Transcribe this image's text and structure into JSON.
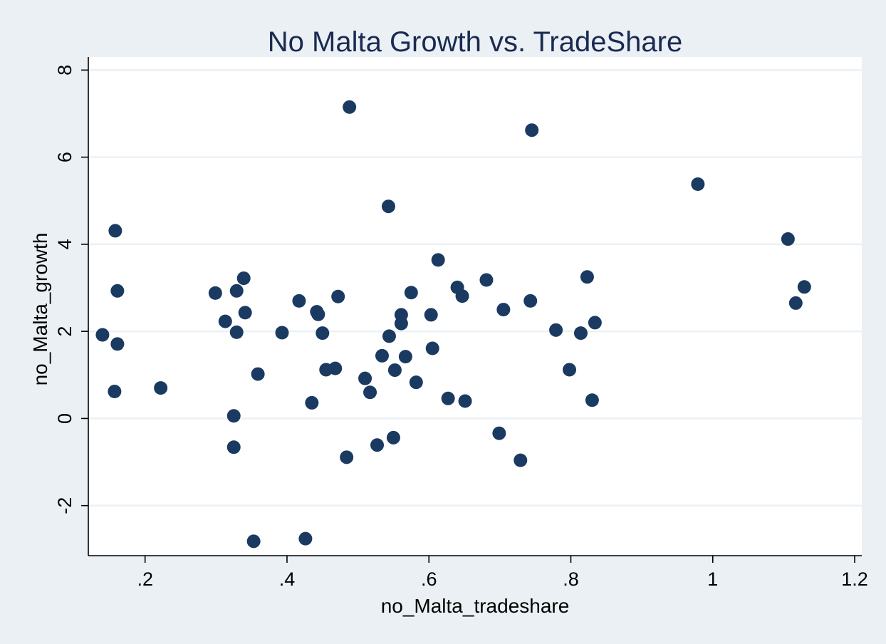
{
  "chart_data": {
    "type": "scatter",
    "title": "No Malta Growth vs. TradeShare",
    "xlabel": "no_Malta_tradeshare",
    "ylabel": "no_Malta_growth",
    "xlim": [
      0.12,
      1.21
    ],
    "ylim": [
      -3.15,
      8.3
    ],
    "x_ticks": [
      0.2,
      0.4,
      0.6,
      0.8,
      1,
      1.2
    ],
    "x_tick_labels": [
      ".2",
      ".4",
      ".6",
      ".8",
      "1",
      "1.2"
    ],
    "y_ticks": [
      -2,
      0,
      2,
      4,
      6,
      8
    ],
    "y_tick_labels": [
      "-2",
      "0",
      "2",
      "4",
      "6",
      "8"
    ],
    "grid": "horizontal",
    "legend": "none",
    "colors": {
      "background": "#eaf0f3",
      "plot_area": "#ffffff",
      "points": "#1a3a62",
      "title": "#1a2a52",
      "grid": "#eaf0f3"
    },
    "points": [
      {
        "x": 0.14,
        "y": 1.92
      },
      {
        "x": 0.158,
        "y": 4.31
      },
      {
        "x": 0.161,
        "y": 2.93
      },
      {
        "x": 0.161,
        "y": 1.71
      },
      {
        "x": 0.157,
        "y": 0.62
      },
      {
        "x": 0.222,
        "y": 0.7
      },
      {
        "x": 0.299,
        "y": 2.88
      },
      {
        "x": 0.313,
        "y": 2.23
      },
      {
        "x": 0.329,
        "y": 2.93
      },
      {
        "x": 0.329,
        "y": 1.98
      },
      {
        "x": 0.339,
        "y": 3.22
      },
      {
        "x": 0.341,
        "y": 2.43
      },
      {
        "x": 0.325,
        "y": 0.06
      },
      {
        "x": 0.325,
        "y": -0.66
      },
      {
        "x": 0.359,
        "y": 1.02
      },
      {
        "x": 0.353,
        "y": -2.82
      },
      {
        "x": 0.393,
        "y": 1.97
      },
      {
        "x": 0.417,
        "y": 2.7
      },
      {
        "x": 0.426,
        "y": -2.76
      },
      {
        "x": 0.435,
        "y": 0.36
      },
      {
        "x": 0.442,
        "y": 2.45
      },
      {
        "x": 0.444,
        "y": 2.39
      },
      {
        "x": 0.45,
        "y": 1.96
      },
      {
        "x": 0.455,
        "y": 1.12
      },
      {
        "x": 0.468,
        "y": 1.15
      },
      {
        "x": 0.472,
        "y": 2.8
      },
      {
        "x": 0.484,
        "y": -0.89
      },
      {
        "x": 0.488,
        "y": 7.15
      },
      {
        "x": 0.51,
        "y": 0.92
      },
      {
        "x": 0.517,
        "y": 0.6
      },
      {
        "x": 0.527,
        "y": -0.61
      },
      {
        "x": 0.534,
        "y": 1.44
      },
      {
        "x": 0.543,
        "y": 4.87
      },
      {
        "x": 0.544,
        "y": 1.89
      },
      {
        "x": 0.55,
        "y": -0.44
      },
      {
        "x": 0.552,
        "y": 1.11
      },
      {
        "x": 0.561,
        "y": 2.38
      },
      {
        "x": 0.561,
        "y": 2.18
      },
      {
        "x": 0.567,
        "y": 1.42
      },
      {
        "x": 0.575,
        "y": 2.89
      },
      {
        "x": 0.582,
        "y": 0.83
      },
      {
        "x": 0.603,
        "y": 2.38
      },
      {
        "x": 0.605,
        "y": 1.61
      },
      {
        "x": 0.613,
        "y": 3.64
      },
      {
        "x": 0.627,
        "y": 0.46
      },
      {
        "x": 0.64,
        "y": 3.01
      },
      {
        "x": 0.647,
        "y": 2.81
      },
      {
        "x": 0.651,
        "y": 0.4
      },
      {
        "x": 0.681,
        "y": 3.18
      },
      {
        "x": 0.699,
        "y": -0.34
      },
      {
        "x": 0.705,
        "y": 2.5
      },
      {
        "x": 0.729,
        "y": -0.96
      },
      {
        "x": 0.743,
        "y": 2.7
      },
      {
        "x": 0.745,
        "y": 6.62
      },
      {
        "x": 0.779,
        "y": 2.03
      },
      {
        "x": 0.798,
        "y": 1.12
      },
      {
        "x": 0.814,
        "y": 1.96
      },
      {
        "x": 0.823,
        "y": 3.25
      },
      {
        "x": 0.83,
        "y": 0.42
      },
      {
        "x": 0.834,
        "y": 2.2
      },
      {
        "x": 0.979,
        "y": 5.38
      },
      {
        "x": 1.106,
        "y": 4.12
      },
      {
        "x": 1.117,
        "y": 2.65
      },
      {
        "x": 1.129,
        "y": 3.02
      }
    ]
  }
}
